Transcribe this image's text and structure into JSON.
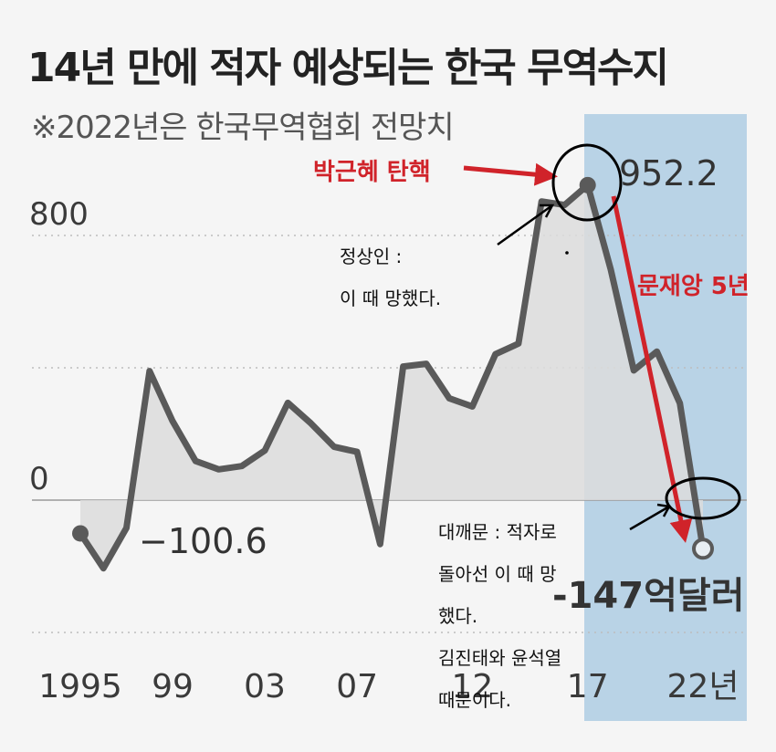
{
  "header": {
    "title": "14년 만에 적자 예상되는 한국 무역수지",
    "subtitle": "※2022년은 한국무역협회 전망치"
  },
  "chart_data": {
    "type": "line",
    "title": "14년 만에 적자 예상되는 한국 무역수지",
    "subtitle": "※2022년은 한국무역협회 전망치",
    "x": [
      1995,
      1996,
      1997,
      1998,
      1999,
      2000,
      2001,
      2002,
      2003,
      2004,
      2005,
      2006,
      2007,
      2008,
      2009,
      2010,
      2011,
      2012,
      2013,
      2014,
      2015,
      2016,
      2017,
      2018,
      2019,
      2020,
      2021,
      2022
    ],
    "values": [
      -100.6,
      -206,
      -84,
      390,
      239,
      118,
      93,
      103,
      150,
      294,
      232,
      161,
      146,
      -133,
      404,
      412,
      308,
      283,
      441,
      473,
      903,
      892,
      952.2,
      697,
      392,
      449,
      293,
      -147
    ],
    "yticks": [
      0,
      800
    ],
    "ylim": [
      -400,
      1050
    ],
    "xtick_labels": [
      "1995",
      "99",
      "03",
      "07",
      "12",
      "17",
      "22년"
    ],
    "annotations": {
      "start_value": "−100.6",
      "peak_value": "952.2",
      "end_value": "-147억달러",
      "impeachment": "박근혜 탄핵",
      "moon_term": "문재앙 5년"
    },
    "grid": true
  },
  "notes": {
    "note1_line1": "정상인 :",
    "note1_line2": "이 때 망했다.",
    "note2_line1": "대깨문 : 적자로",
    "note2_line2": "돌아선 이 때 망",
    "note2_line3": "했다.",
    "note2_line4": "김진태와 윤석열",
    "note2_line5": "때문이다."
  },
  "colors": {
    "line": "#5a5a5a",
    "area": "#dcdcdc",
    "highlight": "#b9d3e6",
    "red": "#d0232a",
    "text": "#3a3a3a"
  }
}
